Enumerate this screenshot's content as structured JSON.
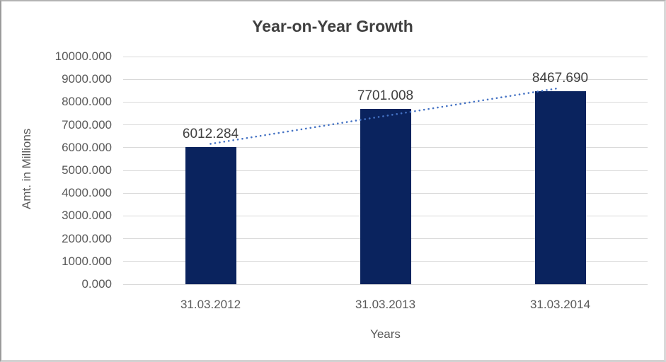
{
  "chart_data": {
    "type": "bar",
    "title": "Year-on-Year Growth",
    "xlabel": "Years",
    "ylabel": "Amt. in Millions",
    "categories": [
      "31.03.2012",
      "31.03.2013",
      "31.03.2014"
    ],
    "values": [
      6012.284,
      7701.008,
      8467.69
    ],
    "data_labels": [
      "6012.284",
      "7701.008",
      "8467.690"
    ],
    "ylim": [
      0,
      10000
    ],
    "ytick_labels": [
      "10000.000",
      "9000.000",
      "8000.000",
      "7000.000",
      "6000.000",
      "5000.000",
      "4000.000",
      "3000.000",
      "2000.000",
      "1000.000",
      "0.000"
    ],
    "grid": true,
    "legend": "none",
    "bar_color": "#0a235e",
    "gridline_color": "#d9d9d9",
    "text_color": "#595959",
    "title_color": "#404040",
    "trendline": {
      "type": "linear",
      "style": "dotted",
      "color": "#4472c4"
    }
  }
}
